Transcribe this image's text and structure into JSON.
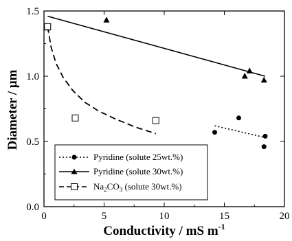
{
  "chart_data": {
    "type": "scatter",
    "xlabel": "Conductivity / mS m",
    "xlabel_sup": "-1",
    "ylabel": "Diameter / μm",
    "xlim": [
      0,
      20
    ],
    "ylim": [
      0.0,
      1.5
    ],
    "x_ticks": [
      0,
      5,
      10,
      15,
      20
    ],
    "x_tick_labels": [
      "0",
      "5",
      "10",
      "15",
      "20"
    ],
    "y_ticks": [
      0.0,
      0.5,
      1.0,
      1.5
    ],
    "y_tick_labels": [
      "0.0",
      "0.5",
      "1.0",
      "1.5"
    ],
    "grid": false,
    "legend_position": "bottom-left",
    "series": [
      {
        "name": "Pyridine (solute 25wt.%)",
        "marker": "circle",
        "marker_fill": "#000000",
        "line_style": "dotted",
        "points": [
          {
            "x": 14.2,
            "y": 0.57
          },
          {
            "x": 16.2,
            "y": 0.68
          },
          {
            "x": 18.4,
            "y": 0.54
          },
          {
            "x": 18.3,
            "y": 0.46
          }
        ],
        "fit_line": [
          {
            "x": 14.2,
            "y": 0.62
          },
          {
            "x": 18.4,
            "y": 0.53
          }
        ]
      },
      {
        "name": "Pyridine (solute 30wt.%)",
        "marker": "triangle",
        "marker_fill": "#000000",
        "line_style": "solid",
        "points": [
          {
            "x": 0.3,
            "y": 1.37
          },
          {
            "x": 5.2,
            "y": 1.43
          },
          {
            "x": 16.7,
            "y": 1.0
          },
          {
            "x": 17.1,
            "y": 1.04
          },
          {
            "x": 18.3,
            "y": 0.97
          }
        ],
        "fit_line": [
          {
            "x": 0.3,
            "y": 1.46
          },
          {
            "x": 18.4,
            "y": 1.0
          }
        ]
      },
      {
        "name_main": "Na",
        "name_sub": "2",
        "name_mid": "CO",
        "name_sub2": "3",
        "name_tail": " (solute 30wt.%)",
        "marker": "square",
        "marker_fill": "#ffffff",
        "line_style": "dashed",
        "points": [
          {
            "x": 0.3,
            "y": 1.38
          },
          {
            "x": 2.6,
            "y": 0.68
          },
          {
            "x": 9.3,
            "y": 0.66
          }
        ],
        "fit_curve": [
          {
            "x": 0.3,
            "y": 1.38
          },
          {
            "x": 0.6,
            "y": 1.22
          },
          {
            "x": 1.0,
            "y": 1.1
          },
          {
            "x": 1.6,
            "y": 0.99
          },
          {
            "x": 2.4,
            "y": 0.89
          },
          {
            "x": 3.4,
            "y": 0.8
          },
          {
            "x": 4.6,
            "y": 0.73
          },
          {
            "x": 6.0,
            "y": 0.67
          },
          {
            "x": 7.6,
            "y": 0.61
          },
          {
            "x": 9.3,
            "y": 0.56
          }
        ]
      }
    ]
  }
}
